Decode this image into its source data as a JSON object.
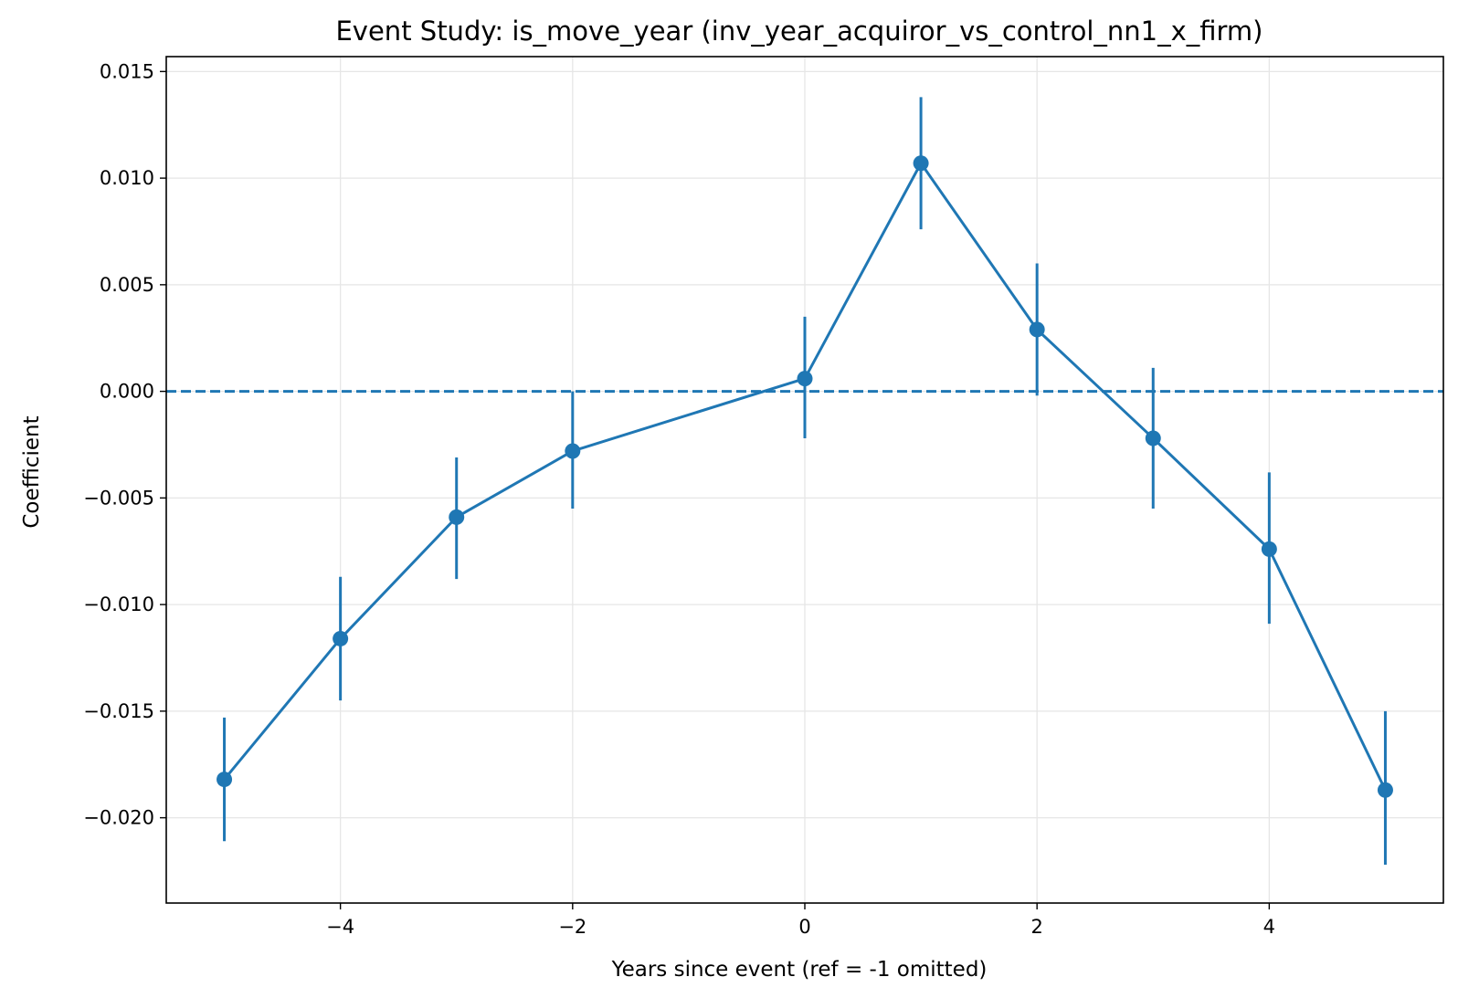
{
  "chart_data": {
    "type": "line",
    "title": "Event Study: is_move_year (inv_year_acquiror_vs_control_nn1_x_firm)",
    "xlabel": "Years since event (ref = -1 omitted)",
    "ylabel": "Coefficient",
    "xlim": [
      -5.5,
      5.5
    ],
    "ylim": [
      -0.024,
      0.0157
    ],
    "xticks": [
      -4,
      -2,
      0,
      2,
      4
    ],
    "xtick_labels": [
      "−4",
      "−2",
      "0",
      "2",
      "4"
    ],
    "yticks": [
      0.015,
      0.01,
      0.005,
      0.0,
      -0.005,
      -0.01,
      -0.015,
      -0.02
    ],
    "ytick_labels": [
      "0.015",
      "0.010",
      "0.005",
      "0.000",
      "−0.005",
      "−0.010",
      "−0.015",
      "−0.020"
    ],
    "grid": true,
    "reference_line": {
      "y": 0,
      "style": "dashed"
    },
    "series": [
      {
        "x": [
          -5,
          -4,
          -3,
          -2,
          0,
          1,
          2,
          3,
          4,
          5
        ],
        "y": [
          -0.0182,
          -0.0116,
          -0.0059,
          -0.0028,
          0.0006,
          0.0107,
          0.0029,
          -0.0022,
          -0.0074,
          -0.0187
        ],
        "ci_low": [
          -0.0211,
          -0.0145,
          -0.0088,
          -0.0055,
          -0.0022,
          0.0076,
          -0.0002,
          -0.0055,
          -0.0109,
          -0.0222
        ],
        "ci_high": [
          -0.0153,
          -0.0087,
          -0.0031,
          0.0,
          0.0035,
          0.0138,
          0.006,
          0.0011,
          -0.0038,
          -0.015
        ]
      }
    ],
    "colors": {
      "series": "#1f77b4",
      "grid": "#e6e6e6",
      "axes": "#000000"
    }
  }
}
